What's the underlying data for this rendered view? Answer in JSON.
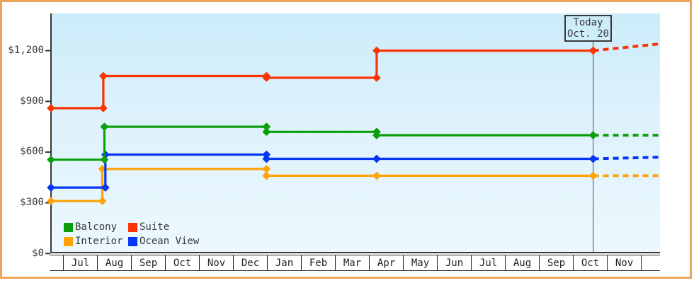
{
  "colors": {
    "outer_border": "#eaa65c",
    "axis": "#383838",
    "plot_bg_top": "#cbecfa",
    "plot_bg_bottom": "#ecf8fe",
    "text": "#383838",
    "balcony": "#0ba00b",
    "suite": "#fa3305",
    "interior": "#fea408",
    "ocean_view": "#0636f5"
  },
  "chart_data": {
    "type": "line",
    "subtype": "step-price-history",
    "title": "",
    "xlabel": "",
    "ylabel": "",
    "ylim": [
      0,
      1420
    ],
    "grid": false,
    "y_axis": {
      "ticks": [
        {
          "value": 0,
          "label": "$0"
        },
        {
          "value": 300,
          "label": "$300"
        },
        {
          "value": 600,
          "label": "$600"
        },
        {
          "value": 900,
          "label": "$900"
        },
        {
          "value": 1200,
          "label": "$1,200"
        }
      ]
    },
    "x_axis": {
      "months": [
        "Jul",
        "Aug",
        "Sep",
        "Oct",
        "Nov",
        "Dec",
        "Jan",
        "Feb",
        "Mar",
        "Apr",
        "May",
        "Jun",
        "Jul",
        "Aug",
        "Sep",
        "Oct",
        "Nov"
      ]
    },
    "today_marker": {
      "label_line1": "Today",
      "label_line2": "Oct. 20",
      "month_frac": 15.59
    },
    "series": [
      {
        "name": "Interior",
        "color": "#fea408",
        "points": [
          [
            -0.36,
            310
          ],
          [
            1.15,
            310
          ],
          [
            1.15,
            500
          ],
          [
            5.98,
            500
          ],
          [
            5.98,
            460
          ],
          [
            9.22,
            460
          ],
          [
            15.59,
            460
          ]
        ],
        "projection": [
          [
            15.59,
            460
          ],
          [
            17.54,
            460
          ]
        ]
      },
      {
        "name": "Ocean View",
        "color": "#0636f5",
        "points": [
          [
            -0.36,
            390
          ],
          [
            1.24,
            390
          ],
          [
            1.24,
            585
          ],
          [
            5.98,
            585
          ],
          [
            5.98,
            560
          ],
          [
            9.22,
            560
          ],
          [
            15.59,
            560
          ]
        ],
        "projection": [
          [
            15.59,
            560
          ],
          [
            17.54,
            570
          ]
        ]
      },
      {
        "name": "Balcony",
        "color": "#0ba00b",
        "points": [
          [
            -0.36,
            555
          ],
          [
            1.21,
            555
          ],
          [
            1.21,
            750
          ],
          [
            5.98,
            750
          ],
          [
            5.98,
            720
          ],
          [
            9.22,
            720
          ],
          [
            9.22,
            700
          ],
          [
            15.59,
            700
          ]
        ],
        "projection": [
          [
            15.59,
            700
          ],
          [
            17.54,
            700
          ]
        ]
      },
      {
        "name": "Suite",
        "color": "#fa3305",
        "points": [
          [
            -0.36,
            860
          ],
          [
            1.18,
            860
          ],
          [
            1.18,
            1050
          ],
          [
            5.98,
            1050
          ],
          [
            5.98,
            1040
          ],
          [
            9.22,
            1040
          ],
          [
            9.22,
            1200
          ],
          [
            15.59,
            1200
          ]
        ],
        "projection": [
          [
            15.59,
            1200
          ],
          [
            17.54,
            1240
          ]
        ]
      }
    ],
    "legend": [
      {
        "label": "Balcony",
        "color": "#0ba00b"
      },
      {
        "label": "Suite",
        "color": "#fa3305"
      },
      {
        "label": "Interior",
        "color": "#fea408"
      },
      {
        "label": "Ocean View",
        "color": "#0636f5"
      }
    ],
    "legend_position": "bottom-left-inside"
  }
}
